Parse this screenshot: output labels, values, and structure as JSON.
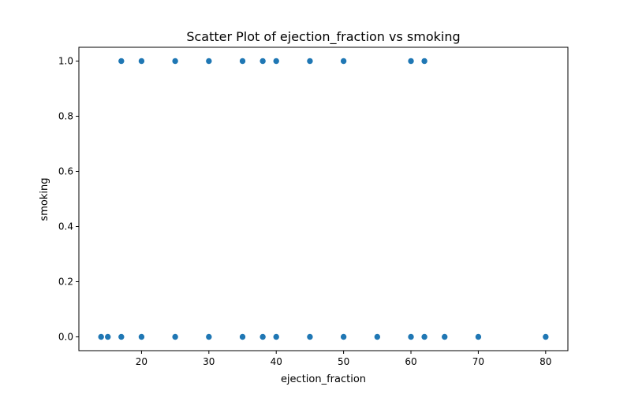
{
  "chart_data": {
    "type": "scatter",
    "title": "Scatter Plot of ejection_fraction vs smoking",
    "xlabel": "ejection_fraction",
    "ylabel": "smoking",
    "xlim": [
      10.7,
      83.3
    ],
    "ylim": [
      -0.05,
      1.05
    ],
    "xticks": [
      20,
      30,
      40,
      50,
      60,
      70,
      80
    ],
    "yticks": [
      0.0,
      0.2,
      0.4,
      0.6,
      0.8,
      1.0
    ],
    "xtick_labels": [
      "20",
      "30",
      "40",
      "50",
      "60",
      "70",
      "80"
    ],
    "ytick_labels": [
      "0.0",
      "0.2",
      "0.4",
      "0.6",
      "0.8",
      "1.0"
    ],
    "grid": false,
    "legend": "none",
    "marker_color": "#1f77b4",
    "points": [
      {
        "x": 14,
        "y": 0
      },
      {
        "x": 15,
        "y": 0
      },
      {
        "x": 17,
        "y": 0
      },
      {
        "x": 20,
        "y": 0
      },
      {
        "x": 25,
        "y": 0
      },
      {
        "x": 30,
        "y": 0
      },
      {
        "x": 35,
        "y": 0
      },
      {
        "x": 38,
        "y": 0
      },
      {
        "x": 40,
        "y": 0
      },
      {
        "x": 45,
        "y": 0
      },
      {
        "x": 50,
        "y": 0
      },
      {
        "x": 55,
        "y": 0
      },
      {
        "x": 60,
        "y": 0
      },
      {
        "x": 62,
        "y": 0
      },
      {
        "x": 65,
        "y": 0
      },
      {
        "x": 70,
        "y": 0
      },
      {
        "x": 80,
        "y": 0
      },
      {
        "x": 17,
        "y": 1
      },
      {
        "x": 20,
        "y": 1
      },
      {
        "x": 25,
        "y": 1
      },
      {
        "x": 30,
        "y": 1
      },
      {
        "x": 35,
        "y": 1
      },
      {
        "x": 38,
        "y": 1
      },
      {
        "x": 40,
        "y": 1
      },
      {
        "x": 45,
        "y": 1
      },
      {
        "x": 50,
        "y": 1
      },
      {
        "x": 60,
        "y": 1
      },
      {
        "x": 62,
        "y": 1
      }
    ]
  }
}
